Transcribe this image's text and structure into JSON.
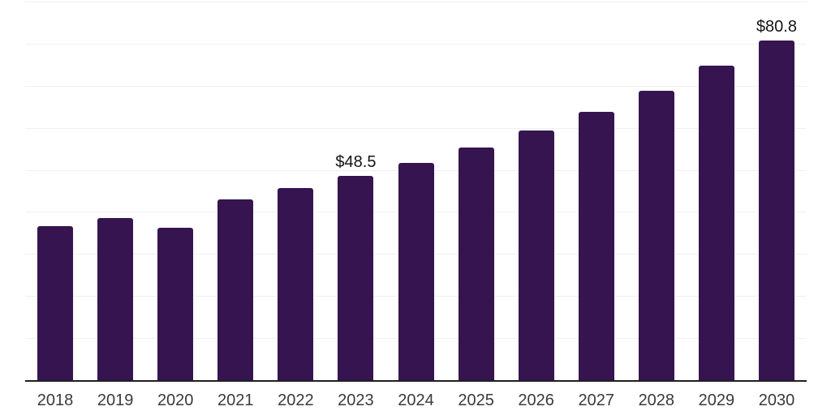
{
  "chart_data": {
    "type": "bar",
    "title": "",
    "xlabel": "",
    "ylabel": "",
    "categories": [
      "2018",
      "2019",
      "2020",
      "2021",
      "2022",
      "2023",
      "2024",
      "2025",
      "2026",
      "2027",
      "2028",
      "2029",
      "2030"
    ],
    "values": [
      36.6,
      38.5,
      36.2,
      42.9,
      45.6,
      48.5,
      51.7,
      55.4,
      59.3,
      63.8,
      68.8,
      74.7,
      80.8
    ],
    "data_labels": {
      "2023": "$48.5",
      "2030": "$80.8"
    },
    "ylim": [
      0,
      90
    ],
    "grid_step": 10,
    "grid": "horizontal-only",
    "legend": "none",
    "colors": {
      "bar": "#361450",
      "axis_line": "#1f1f1f",
      "gridline": "#f0f0f0",
      "tick_label": "#3a3a3a",
      "data_label": "#141414",
      "background": "#ffffff"
    }
  }
}
